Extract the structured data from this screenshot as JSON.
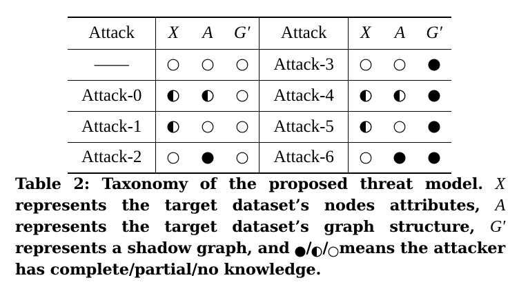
{
  "table": {
    "header": {
      "left_attack": "Attack",
      "left_x": "X",
      "left_a": "A",
      "left_g": "G′",
      "right_attack": "Attack",
      "right_x": "X",
      "right_a": "A",
      "right_g": "G′"
    },
    "rows": [
      {
        "left_name": "——",
        "left": [
          "none",
          "none",
          "none"
        ],
        "right_name": "Attack-3",
        "right": [
          "none",
          "none",
          "complete"
        ]
      },
      {
        "left_name": "Attack-0",
        "left": [
          "partial",
          "partial",
          "none"
        ],
        "right_name": "Attack-4",
        "right": [
          "partial",
          "partial",
          "complete"
        ]
      },
      {
        "left_name": "Attack-1",
        "left": [
          "partial",
          "none",
          "none"
        ],
        "right_name": "Attack-5",
        "right": [
          "partial",
          "none",
          "complete"
        ]
      },
      {
        "left_name": "Attack-2",
        "left": [
          "none",
          "complete",
          "none"
        ],
        "right_name": "Attack-6",
        "right": [
          "none",
          "complete",
          "complete"
        ]
      }
    ],
    "symbol_icons": {
      "complete": "filled-circle-icon",
      "partial": "half-filled-circle-icon",
      "none": "empty-circle-icon"
    }
  },
  "caption": {
    "label": "Table 2:",
    "title": "Taxonomy of the proposed threat model.",
    "var_x": "X",
    "text_1": "represents the target dataset’s nodes attributes,",
    "var_a": "A",
    "text_2": "represents the target dataset’s graph structure,",
    "var_g": "G′",
    "text_3": "represents a shadow graph, and",
    "sep_1": "/",
    "sep_2": "/",
    "text_4": "means the attacker has complete/partial/no knowledge."
  }
}
